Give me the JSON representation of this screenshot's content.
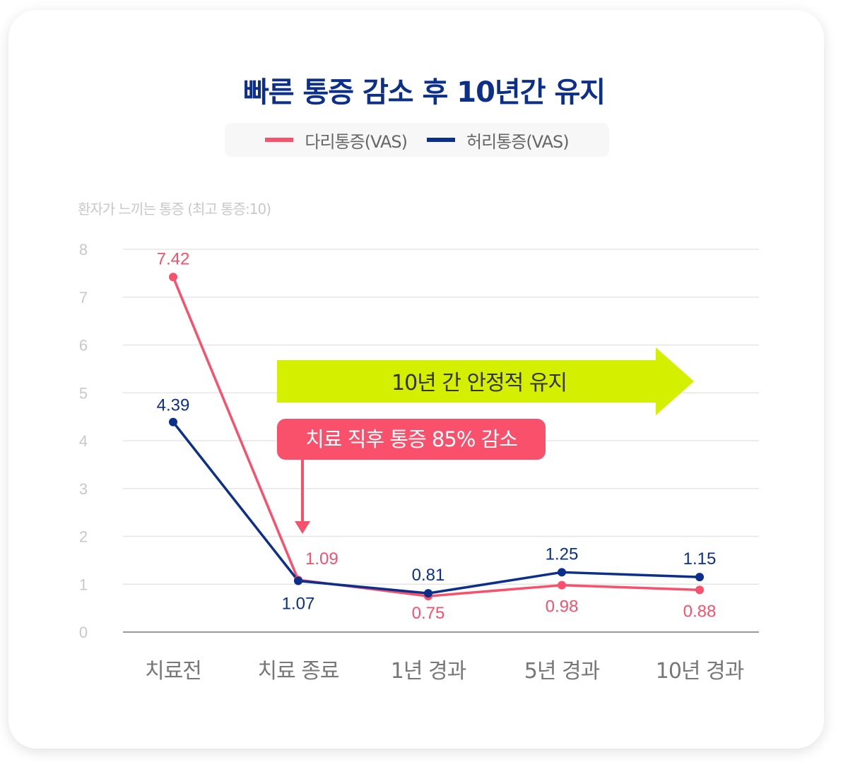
{
  "chart_data": {
    "type": "line",
    "title": "빠른 통증 감소 후 10년간 유지",
    "ylabel": "환자가 느끼는 통증 (최고 통증:10)",
    "xlabel": "",
    "categories": [
      "치료전",
      "치료 종료",
      "1년 경과",
      "5년 경과",
      "10년 경과"
    ],
    "yticks": [
      "0",
      "1",
      "2",
      "3",
      "4",
      "5",
      "6",
      "7",
      "8"
    ],
    "ylim": [
      0,
      8
    ],
    "grid": true,
    "legend_position": "top-center",
    "series": [
      {
        "name": "다리통증(VAS)",
        "color": "#f9506b",
        "values": [
          7.42,
          1.09,
          0.75,
          0.98,
          0.88
        ],
        "labels": [
          "7.42",
          "1.09",
          "0.75",
          "0.98",
          "0.88"
        ]
      },
      {
        "name": "허리통증(VAS)",
        "color": "#0b2f8a",
        "values": [
          4.39,
          1.07,
          0.81,
          1.25,
          1.15
        ],
        "labels": [
          "4.39",
          "1.07",
          "0.81",
          "1.25",
          "1.15"
        ]
      }
    ],
    "annotations": {
      "stable": "10년 간 안정적 유지",
      "drop": "치료 직후 통증 85% 감소"
    },
    "annotation_colors": {
      "stable": "#d4ef00",
      "drop": "#f9506b"
    }
  }
}
